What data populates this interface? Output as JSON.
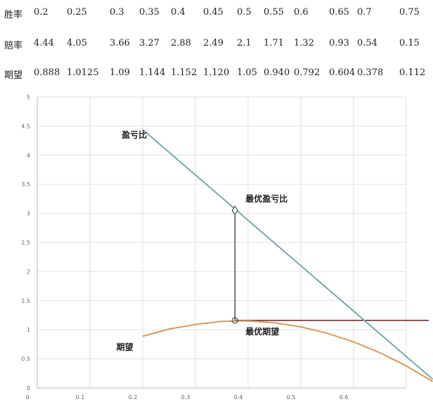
{
  "table": {
    "rows": [
      {
        "label": "胜率",
        "values": [
          "0.2",
          "0.25",
          "0.3",
          "0.35",
          "0.4",
          "0.45",
          "0.5",
          "0.55",
          "0.6",
          "0.65",
          "0.7",
          "0.75"
        ]
      },
      {
        "label": "赔率",
        "values": [
          "4.44",
          "4.05",
          "3.66",
          "3.27",
          "2.88",
          "2.49",
          "2.1",
          "1.71",
          "1.32",
          "0.93",
          "0.54",
          "0.15"
        ]
      },
      {
        "label": "期望",
        "values": [
          "0.888",
          "1.0125",
          "1.09",
          "1.144",
          "1.152",
          "1.120",
          "1.05",
          "0.940",
          "0.792",
          "0.604",
          "0.378",
          "0.112"
        ]
      }
    ]
  },
  "chart_data": {
    "type": "line",
    "xlim": [
      0,
      0.7
    ],
    "ylim": [
      0,
      5
    ],
    "x_ticks": [
      "0",
      "0.1",
      "0.2",
      "0.3",
      "0.4",
      "0.5",
      "0.6"
    ],
    "y_ticks": [
      "0",
      "0.5",
      "1",
      "1.5",
      "2",
      "2.5",
      "3",
      "3.5",
      "4",
      "4.5",
      "5"
    ],
    "grid": true,
    "series": [
      {
        "name": "盈亏比",
        "color": "#7aa7a9",
        "x": [
          0.2,
          0.75
        ],
        "y": [
          4.44,
          0.15
        ]
      },
      {
        "name": "期望",
        "color": "#d79a5c",
        "x": [
          0.2,
          0.25,
          0.3,
          0.35,
          0.4,
          0.45,
          0.5,
          0.55,
          0.6,
          0.65,
          0.7,
          0.75
        ],
        "y": [
          0.888,
          1.0125,
          1.09,
          1.144,
          1.152,
          1.12,
          1.05,
          0.94,
          0.792,
          0.604,
          0.378,
          0.112
        ]
      }
    ],
    "annotations": [
      {
        "text": "盈亏比",
        "x": 0.16,
        "y": 4.3
      },
      {
        "text": "最优盈亏比",
        "x": 0.395,
        "y": 3.2
      },
      {
        "text": "最优期望",
        "x": 0.395,
        "y": 0.92
      },
      {
        "text": "期望",
        "x": 0.15,
        "y": 0.65
      }
    ],
    "optimum": {
      "x": 0.375,
      "y_ratio": 3.05,
      "y_expect": 1.16
    },
    "horizontal_line": {
      "y": 1.16,
      "color": "#7a2a2a"
    }
  }
}
